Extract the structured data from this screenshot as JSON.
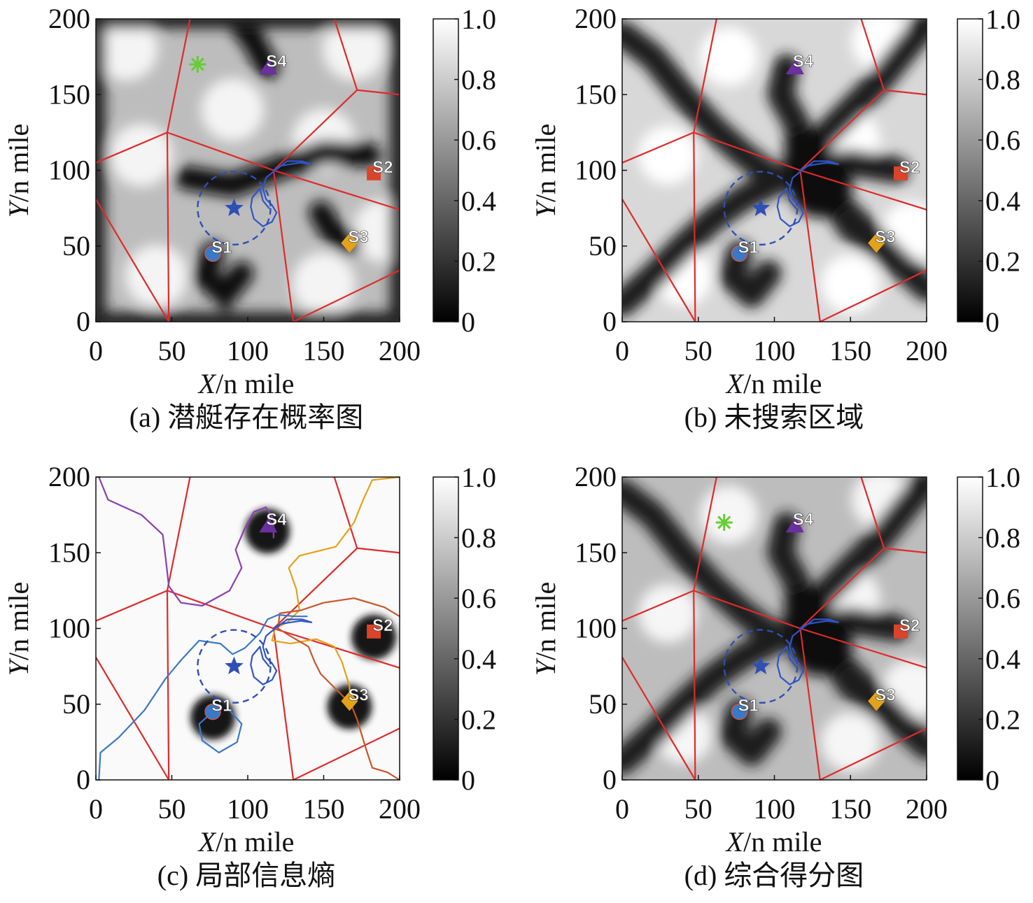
{
  "chart_data": [
    {
      "type": "heatmap",
      "caption": "(a) 潜艇存在概率图",
      "xlabel_var": "X",
      "xlabel_unit": "/n mile",
      "ylabel_var": "Y",
      "ylabel_unit": "/n mile",
      "xlim": [
        0,
        200
      ],
      "ylim": [
        0,
        200
      ],
      "xticks": [
        "0",
        "50",
        "100",
        "150",
        "200"
      ],
      "yticks": [
        "0",
        "50",
        "100",
        "150",
        "200"
      ],
      "colorbar": {
        "range": [
          0,
          1.0
        ],
        "ticks": [
          "0",
          "0.2",
          "0.4",
          "0.6",
          "0.8",
          "1.0"
        ]
      },
      "units": [
        {
          "label": "S1",
          "x": 77,
          "y": 45,
          "shape": "circle",
          "color": "#3a78c9"
        },
        {
          "label": "S2",
          "x": 183,
          "y": 98,
          "shape": "square",
          "color": "#d9442b"
        },
        {
          "label": "S3",
          "x": 167,
          "y": 52,
          "shape": "diamond",
          "color": "#e3a21a"
        },
        {
          "label": "S4",
          "x": 113,
          "y": 168,
          "shape": "triangle",
          "color": "#6b2fa0"
        }
      ],
      "target": {
        "x": 67,
        "y": 170,
        "color": "#66cc33"
      },
      "star": {
        "x": 91,
        "y": 75,
        "radius": 24,
        "color": "#2f4fb5"
      }
    },
    {
      "type": "heatmap",
      "caption": "(b) 未搜索区域",
      "xlabel_var": "X",
      "xlabel_unit": "/n mile",
      "ylabel_var": "Y",
      "ylabel_unit": "/n mile",
      "xlim": [
        0,
        200
      ],
      "ylim": [
        0,
        200
      ],
      "xticks": [
        "0",
        "50",
        "100",
        "150",
        "200"
      ],
      "yticks": [
        "0",
        "50",
        "100",
        "150",
        "200"
      ],
      "colorbar": {
        "range": [
          0,
          1.0
        ],
        "ticks": [
          "0",
          "0.2",
          "0.4",
          "0.6",
          "0.8",
          "1.0"
        ]
      },
      "units": [
        {
          "label": "S1",
          "x": 77,
          "y": 45,
          "shape": "circle",
          "color": "#3a78c9"
        },
        {
          "label": "S2",
          "x": 183,
          "y": 98,
          "shape": "square",
          "color": "#d9442b"
        },
        {
          "label": "S3",
          "x": 167,
          "y": 52,
          "shape": "diamond",
          "color": "#e3a21a"
        },
        {
          "label": "S4",
          "x": 113,
          "y": 168,
          "shape": "triangle",
          "color": "#6b2fa0"
        }
      ],
      "star": {
        "x": 91,
        "y": 75,
        "radius": 24,
        "color": "#2f4fb5"
      }
    },
    {
      "type": "heatmap",
      "caption": "(c) 局部信息熵",
      "xlabel_var": "X",
      "xlabel_unit": "/n mile",
      "ylabel_var": "Y",
      "ylabel_unit": "/n mile",
      "xlim": [
        0,
        200
      ],
      "ylim": [
        0,
        200
      ],
      "xticks": [
        "0",
        "50",
        "100",
        "150",
        "200"
      ],
      "yticks": [
        "0",
        "50",
        "100",
        "150",
        "200"
      ],
      "colorbar": {
        "range": [
          0,
          1.0
        ],
        "ticks": [
          "0",
          "0.2",
          "0.4",
          "0.6",
          "0.8",
          "1.0"
        ]
      },
      "units": [
        {
          "label": "S1",
          "x": 77,
          "y": 45,
          "shape": "circle",
          "color": "#3a78c9"
        },
        {
          "label": "S2",
          "x": 183,
          "y": 98,
          "shape": "square",
          "color": "#d9442b"
        },
        {
          "label": "S3",
          "x": 167,
          "y": 52,
          "shape": "diamond",
          "color": "#e3a21a"
        },
        {
          "label": "S4",
          "x": 113,
          "y": 168,
          "shape": "triangle",
          "color": "#6b2fa0"
        }
      ],
      "star": {
        "x": 91,
        "y": 75,
        "radius": 24,
        "color": "#2f4fb5"
      }
    },
    {
      "type": "heatmap",
      "caption": "(d) 综合得分图",
      "xlabel_var": "X",
      "xlabel_unit": "/n mile",
      "ylabel_var": "Y",
      "ylabel_unit": "/n mile",
      "xlim": [
        0,
        200
      ],
      "ylim": [
        0,
        200
      ],
      "xticks": [
        "0",
        "50",
        "100",
        "150",
        "200"
      ],
      "yticks": [
        "0",
        "50",
        "100",
        "150",
        "200"
      ],
      "colorbar": {
        "range": [
          0,
          1.0
        ],
        "ticks": [
          "0",
          "0.2",
          "0.4",
          "0.6",
          "0.8",
          "1.0"
        ]
      },
      "units": [
        {
          "label": "S1",
          "x": 77,
          "y": 45,
          "shape": "circle",
          "color": "#3a78c9"
        },
        {
          "label": "S2",
          "x": 183,
          "y": 98,
          "shape": "square",
          "color": "#d9442b"
        },
        {
          "label": "S3",
          "x": 167,
          "y": 52,
          "shape": "diamond",
          "color": "#e3a21a"
        },
        {
          "label": "S4",
          "x": 113,
          "y": 168,
          "shape": "triangle",
          "color": "#6b2fa0"
        }
      ],
      "target": {
        "x": 67,
        "y": 170,
        "color": "#66cc33"
      },
      "star": {
        "x": 91,
        "y": 75,
        "radius": 24,
        "color": "#2f4fb5"
      }
    }
  ],
  "voronoi": {
    "color": "#e02a2a",
    "nodes": {
      "A": [
        47,
        125
      ],
      "B": [
        117,
        100
      ],
      "C": [
        172,
        153
      ]
    },
    "segments": [
      [
        [
          0,
          105
        ],
        "A"
      ],
      [
        "A",
        [
          62,
          200
        ]
      ],
      [
        "A",
        "B"
      ],
      [
        "A",
        [
          48,
          0
        ]
      ],
      [
        [
          0,
          81
        ],
        [
          48,
          0
        ]
      ],
      [
        "B",
        [
          130,
          0
        ]
      ],
      [
        "B",
        [
          200,
          74
        ]
      ],
      [
        "B",
        "C"
      ],
      [
        "C",
        [
          157,
          200
        ]
      ],
      [
        "C",
        [
          200,
          150
        ]
      ],
      [
        [
          130,
          0
        ],
        [
          200,
          34
        ]
      ]
    ]
  },
  "paths": {
    "blue_local": [
      [
        117,
        100
      ],
      [
        122,
        103
      ],
      [
        128,
        104
      ],
      [
        135,
        105
      ],
      [
        142,
        104
      ],
      [
        136,
        106
      ],
      [
        126,
        106
      ],
      [
        118,
        100
      ],
      [
        112,
        95
      ],
      [
        110,
        88
      ],
      [
        112,
        81
      ],
      [
        116,
        77
      ],
      [
        119,
        72
      ],
      [
        116,
        66
      ],
      [
        110,
        63
      ],
      [
        104,
        68
      ],
      [
        102,
        76
      ],
      [
        103,
        82
      ],
      [
        108,
        88
      ],
      [
        110,
        80
      ],
      [
        114,
        75
      ]
    ],
    "s1_route": [
      [
        2,
        0
      ],
      [
        3,
        18
      ],
      [
        15,
        28
      ],
      [
        32,
        46
      ],
      [
        46,
        67
      ],
      [
        56,
        79
      ],
      [
        68,
        92
      ],
      [
        82,
        90
      ],
      [
        90,
        83
      ],
      [
        98,
        87
      ],
      [
        108,
        97
      ],
      [
        113,
        106
      ],
      [
        120,
        109
      ],
      [
        131,
        108
      ],
      [
        139,
        108
      ]
    ],
    "s1_loop": [
      [
        77,
        45
      ],
      [
        68,
        37
      ],
      [
        70,
        26
      ],
      [
        81,
        18
      ],
      [
        93,
        25
      ],
      [
        96,
        37
      ],
      [
        88,
        46
      ]
    ],
    "s4_route": [
      [
        2,
        200
      ],
      [
        8,
        185
      ],
      [
        30,
        175
      ],
      [
        44,
        162
      ],
      [
        46,
        146
      ],
      [
        48,
        128
      ],
      [
        56,
        117
      ],
      [
        70,
        115
      ],
      [
        88,
        125
      ],
      [
        96,
        140
      ],
      [
        92,
        152
      ],
      [
        98,
        166
      ],
      [
        104,
        177
      ],
      [
        112,
        180
      ],
      [
        117,
        172
      ],
      [
        117,
        160
      ]
    ],
    "s2_route": [
      [
        200,
        108
      ],
      [
        190,
        114
      ],
      [
        170,
        120
      ],
      [
        150,
        117
      ],
      [
        135,
        112
      ],
      [
        121,
        110
      ],
      [
        120,
        100
      ],
      [
        128,
        95
      ],
      [
        140,
        88
      ],
      [
        144,
        78
      ],
      [
        148,
        70
      ],
      [
        158,
        60
      ],
      [
        168,
        50
      ],
      [
        172,
        40
      ],
      [
        178,
        20
      ],
      [
        182,
        8
      ],
      [
        192,
        5
      ],
      [
        200,
        0
      ]
    ],
    "s3_route": [
      [
        200,
        200
      ],
      [
        182,
        198
      ],
      [
        176,
        185
      ],
      [
        170,
        170
      ],
      [
        158,
        154
      ],
      [
        134,
        148
      ],
      [
        127,
        140
      ],
      [
        132,
        126
      ],
      [
        134,
        112
      ],
      [
        126,
        104
      ],
      [
        118,
        100
      ],
      [
        116,
        92
      ],
      [
        128,
        90
      ],
      [
        145,
        93
      ],
      [
        157,
        88
      ],
      [
        162,
        78
      ],
      [
        167,
        62
      ],
      [
        167,
        53
      ]
    ]
  }
}
